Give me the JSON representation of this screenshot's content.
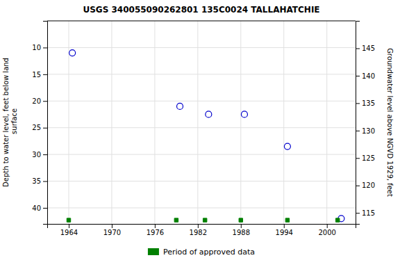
{
  "chart_data": {
    "type": "scatter",
    "title": "USGS 340055090262801 135C0024  TALLAHATCHIE",
    "ylabel": "Depth to water level, feet below land\n surface",
    "y2label": "Groundwater level above NGVD 1929, feet",
    "series": [
      {
        "x": [
          1964.5,
          1979.5,
          1983.5,
          1988.5,
          1994.5,
          2002.0
        ],
        "values": [
          11.0,
          21.0,
          22.5,
          22.5,
          28.5,
          42.0
        ],
        "color": "#0000cc",
        "marker": "circle"
      },
      {
        "name": "Period of approved data",
        "x": [
          1964.0,
          1979.0,
          1983.0,
          1988.0,
          1994.5,
          2001.5
        ],
        "values": [
          42.3,
          42.3,
          42.3,
          42.3,
          42.3,
          42.3
        ],
        "color": "#008000",
        "marker": "square"
      }
    ],
    "xlim": [
      1961,
      2004
    ],
    "xticks": [
      1964,
      1970,
      1976,
      1982,
      1988,
      1994,
      2000
    ],
    "ylim": [
      43,
      5
    ],
    "yticks": [
      10,
      15,
      20,
      25,
      30,
      35,
      40
    ],
    "y2lim": [
      113,
      150
    ],
    "y2ticks": [
      115,
      120,
      125,
      130,
      135,
      140,
      145
    ],
    "grid": true,
    "legend": "bottom"
  }
}
